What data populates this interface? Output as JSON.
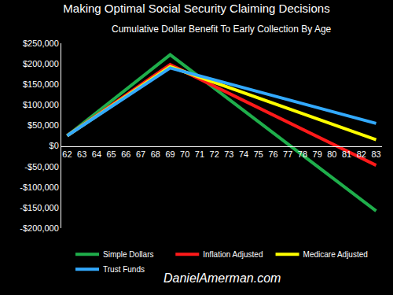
{
  "chart_data": {
    "type": "line",
    "title": "Making Optimal Social Security Claiming Decisions",
    "subtitle": "Cumulative Dollar Benefit To Early Collection By Age",
    "annotations": [
      "DanielAmerman.com"
    ],
    "x": [
      62,
      69,
      83
    ],
    "series": [
      {
        "name": "Simple Dollars",
        "color": "#1fae4b",
        "values": [
          25000,
          222000,
          -158000
        ]
      },
      {
        "name": "Inflation Adjusted",
        "color": "#ff1a1a",
        "values": [
          25000,
          198000,
          -47000
        ]
      },
      {
        "name": "Medicare Adjusted",
        "color": "#ffff00",
        "values": [
          25000,
          193000,
          15000
        ]
      },
      {
        "name": "Trust Funds",
        "color": "#33aaff",
        "values": [
          25000,
          190000,
          55000
        ]
      }
    ],
    "xlim": [
      61.6,
      83.4
    ],
    "xticks": [
      62,
      63,
      64,
      65,
      66,
      67,
      68,
      69,
      70,
      71,
      72,
      73,
      74,
      75,
      76,
      77,
      78,
      79,
      80,
      81,
      82,
      83
    ],
    "ylim": [
      -200000,
      250000
    ],
    "yticks": [
      {
        "value": -200000,
        "label": "-$200,000"
      },
      {
        "value": -150000,
        "label": "-$150,000"
      },
      {
        "value": -100000,
        "label": "-$100,000"
      },
      {
        "value": -50000,
        "label": "-$50,000"
      },
      {
        "value": 0,
        "label": "$0"
      },
      {
        "value": 50000,
        "label": "$50,000"
      },
      {
        "value": 100000,
        "label": "$100,000"
      },
      {
        "value": 150000,
        "label": "$150,000"
      },
      {
        "value": 200000,
        "label": "$200,000"
      },
      {
        "value": 250000,
        "label": "$250,000"
      }
    ],
    "grid": false,
    "legend": "bottom",
    "marker": "none",
    "line_style": "solid"
  }
}
